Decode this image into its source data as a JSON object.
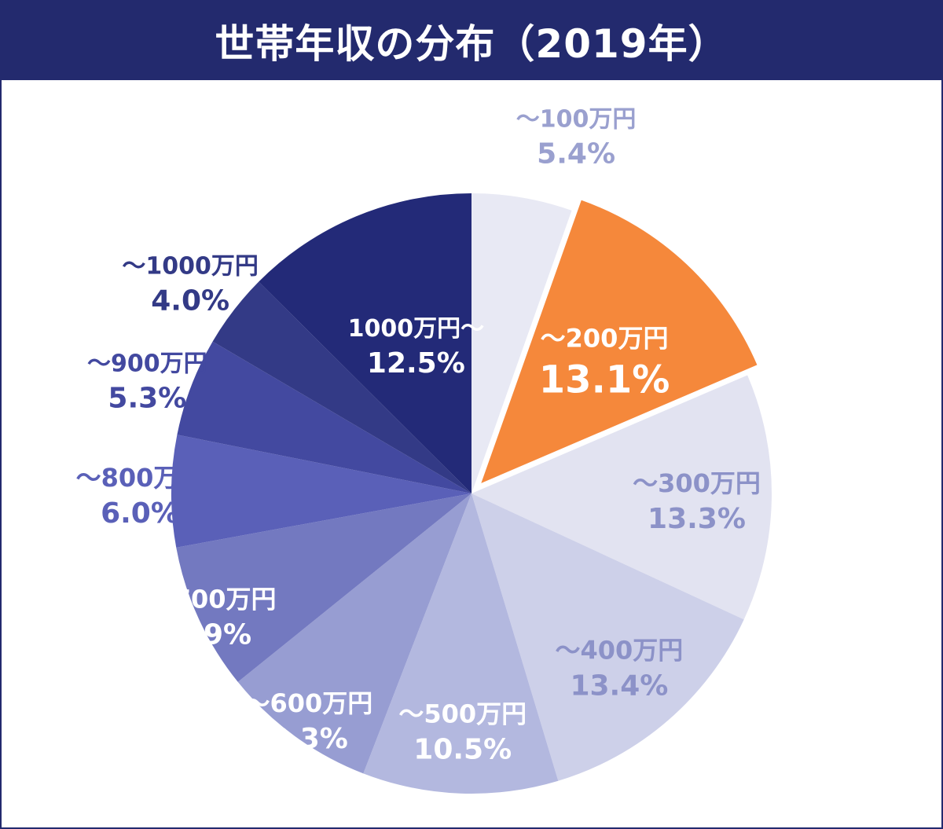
{
  "title": "世帯年収の分布（2019年）",
  "chart_data": {
    "type": "pie",
    "title": "世帯年収の分布（2019年）",
    "start_angle_deg": 0,
    "direction": "clockwise",
    "slices": [
      {
        "label": "～100万円",
        "value": 5.4,
        "value_text": "5.4%",
        "color": "#e8e9f4",
        "text_color": "#9aa0cf",
        "exploded": false
      },
      {
        "label": "～200万円",
        "value": 13.1,
        "value_text": "13.1%",
        "color": "#f5883b",
        "text_color": "#ffffff",
        "exploded": true
      },
      {
        "label": "～300万円",
        "value": 13.3,
        "value_text": "13.3%",
        "color": "#e2e3f1",
        "text_color": "#8c92c8",
        "exploded": false
      },
      {
        "label": "～400万円",
        "value": 13.4,
        "value_text": "13.4%",
        "color": "#cdd0e9",
        "text_color": "#8c92c8",
        "exploded": false
      },
      {
        "label": "～500万円",
        "value": 10.5,
        "value_text": "10.5%",
        "color": "#b3b8df",
        "text_color": "#ffffff",
        "exploded": false
      },
      {
        "label": "～600万円",
        "value": 8.3,
        "value_text": "8.3%",
        "color": "#979dd2",
        "text_color": "#ffffff",
        "exploded": false
      },
      {
        "label": "～700万円",
        "value": 7.9,
        "value_text": "7.9%",
        "color": "#7379c0",
        "text_color": "#ffffff",
        "exploded": false
      },
      {
        "label": "～800万円",
        "value": 6.0,
        "value_text": "6.0%",
        "color": "#5a60b8",
        "text_color": "#5a60b8",
        "exploded": false
      },
      {
        "label": "～900万円",
        "value": 5.3,
        "value_text": "5.3%",
        "color": "#4349a0",
        "text_color": "#4349a0",
        "exploded": false
      },
      {
        "label": "～1000万円",
        "value": 4.0,
        "value_text": "4.0%",
        "color": "#333a86",
        "text_color": "#333a86",
        "exploded": false
      },
      {
        "label": "1000万円～",
        "value": 12.5,
        "value_text": "12.5%",
        "color": "#232a78",
        "text_color": "#ffffff",
        "exploded": false
      }
    ]
  }
}
